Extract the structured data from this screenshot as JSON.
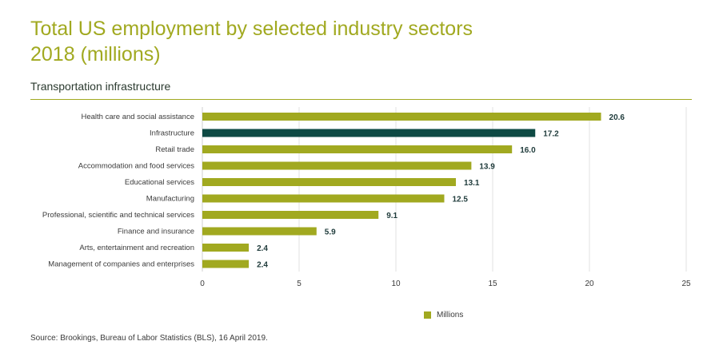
{
  "page": {
    "title_line1": "Total US employment by selected industry sectors",
    "title_line2": "2018 (millions)",
    "subtitle": "Transportation infrastructure",
    "source": "Source: Brookings, Bureau of Labor Statistics (BLS), 16 April 2019."
  },
  "colors": {
    "default_bar": "#a1a920",
    "highlight_bar": "#0e4a44",
    "title": "#a1a920",
    "grid": "#e0e0e0",
    "label": "#3a3a3a",
    "value_label": "#1f3b3b"
  },
  "chart_data": {
    "type": "bar",
    "orientation": "horizontal",
    "categories": [
      "Health care and social assistance",
      "Infrastructure",
      "Retail trade",
      "Accommodation and food services",
      "Educational services",
      "Manufacturing",
      "Professional, scientific and technical services",
      "Finance and insurance",
      "Arts, entertainment and recreation",
      "Management of companies and enterprises"
    ],
    "series": [
      {
        "name": "Millions",
        "values": [
          20.6,
          17.2,
          16.0,
          13.9,
          13.1,
          12.5,
          9.1,
          5.9,
          2.4,
          2.4
        ],
        "value_labels": [
          "20.6",
          "17.2",
          "16.0",
          "13.9",
          "13.1",
          "12.5",
          "9.1",
          "5.9",
          "2.4",
          "2.4"
        ]
      }
    ],
    "highlight_category": "Infrastructure",
    "xlim": [
      0,
      25
    ],
    "xticks": [
      0,
      5,
      10,
      15,
      20,
      25
    ],
    "xtick_labels": [
      "0",
      "5",
      "10",
      "15",
      "20",
      "25"
    ],
    "grid": "vertical",
    "legend": {
      "position": "bottom-center",
      "label": "Millions"
    }
  }
}
